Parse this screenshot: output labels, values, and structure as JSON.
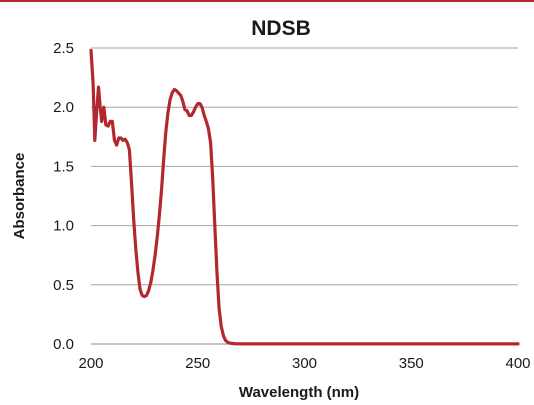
{
  "accent_color": "#b3282d",
  "chart_data": {
    "type": "line",
    "title": "NDSB",
    "xlabel": "Wavelength (nm)",
    "ylabel": "Absorbance",
    "xlim": [
      200,
      400
    ],
    "ylim": [
      0,
      2.5
    ],
    "x_ticks": [
      200,
      250,
      300,
      350,
      400
    ],
    "y_ticks": [
      0.0,
      0.5,
      1.0,
      1.5,
      2.0,
      2.5
    ],
    "x_tick_labels": [
      "200",
      "250",
      "300",
      "350",
      "400"
    ],
    "y_tick_labels": [
      "0.0",
      "0.5",
      "1.0",
      "1.5",
      "2.0",
      "2.5"
    ],
    "grid": true,
    "legend": "none",
    "series": [
      {
        "color": "#b3282d",
        "x": [
          200,
          201,
          201.8,
          202.5,
          203.5,
          204.3,
          205,
          206,
          207,
          208,
          209,
          210,
          211,
          212,
          213,
          214,
          215,
          216,
          217,
          218,
          219,
          220,
          221,
          222,
          223,
          224,
          225,
          226,
          227,
          228,
          229,
          230,
          231,
          232,
          233,
          234,
          235,
          236,
          237,
          238,
          239,
          240,
          241,
          242,
          243,
          244,
          245,
          246,
          247,
          248,
          249,
          250,
          251,
          252,
          253,
          254,
          255,
          256,
          257,
          258,
          259,
          260,
          261,
          262,
          263,
          264,
          265,
          266,
          267,
          268,
          269,
          270,
          271,
          272,
          273,
          274,
          275,
          276,
          277,
          278,
          279,
          280,
          282,
          285,
          290,
          300,
          320,
          350,
          380,
          400
        ],
        "y": [
          2.48,
          2.2,
          1.72,
          1.92,
          2.17,
          2.0,
          1.88,
          2.0,
          1.85,
          1.84,
          1.88,
          1.88,
          1.72,
          1.68,
          1.74,
          1.74,
          1.72,
          1.73,
          1.7,
          1.64,
          1.35,
          1.05,
          0.8,
          0.6,
          0.46,
          0.41,
          0.4,
          0.41,
          0.45,
          0.52,
          0.62,
          0.75,
          0.9,
          1.08,
          1.3,
          1.55,
          1.78,
          1.95,
          2.06,
          2.12,
          2.15,
          2.14,
          2.12,
          2.1,
          2.05,
          1.98,
          1.97,
          1.93,
          1.93,
          1.96,
          2.0,
          2.03,
          2.03,
          2.0,
          1.93,
          1.88,
          1.82,
          1.7,
          1.4,
          1.0,
          0.6,
          0.3,
          0.15,
          0.07,
          0.03,
          0.015,
          0.008,
          0.005,
          0.003,
          0.002,
          0.002,
          0.002,
          0.001,
          0.001,
          0.001,
          0.001,
          0.001,
          0.001,
          0.001,
          0.001,
          0.001,
          0.001,
          0.001,
          0.001,
          0.001,
          0.001,
          0.001,
          0.001,
          0.001,
          0.001
        ]
      }
    ]
  }
}
